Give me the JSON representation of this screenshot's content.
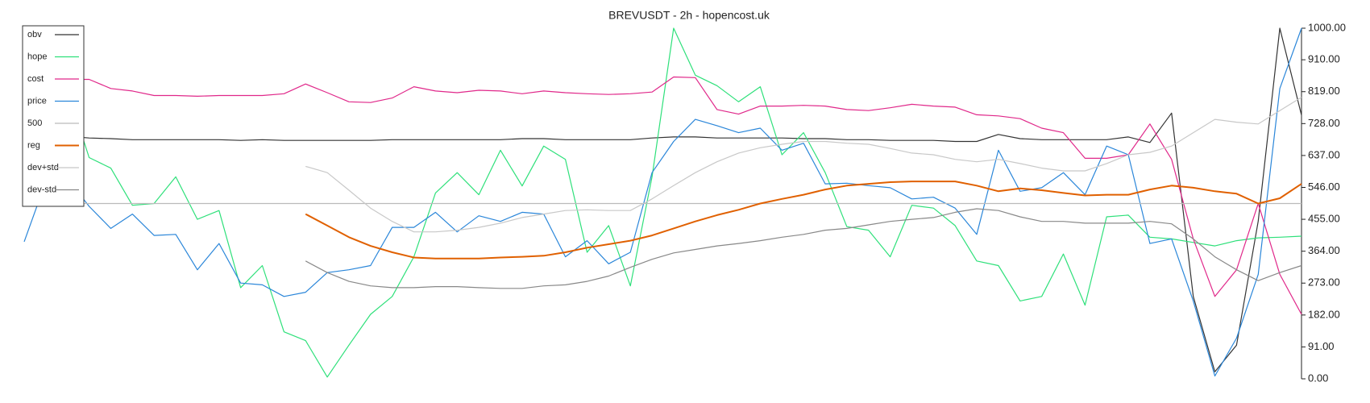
{
  "chart_data": {
    "type": "line",
    "title": "BREVUSDT - 2h - hopencost.uk",
    "legend": "upper left",
    "categories": [
      null,
      null,
      null,
      null,
      null,
      null,
      null,
      null,
      null,
      null,
      null,
      null,
      null,
      null,
      null,
      null,
      null,
      null,
      null,
      null,
      null,
      null,
      null,
      null,
      null,
      null,
      null,
      null,
      null,
      null,
      null,
      null,
      null,
      null,
      null,
      null,
      null,
      null,
      null,
      null,
      null,
      null,
      null,
      null,
      null,
      null,
      null,
      null,
      null,
      null,
      null,
      null,
      null,
      null,
      null,
      null,
      null,
      null,
      null,
      null
    ],
    "ylim": [
      0,
      1000
    ],
    "yticks": [
      {
        "value": 0,
        "label": "0.00"
      },
      {
        "value": 91,
        "label": "91.00"
      },
      {
        "value": 182,
        "label": "182.00"
      },
      {
        "value": 273,
        "label": "273.00"
      },
      {
        "value": 364,
        "label": "364.00"
      },
      {
        "value": 455,
        "label": "455.00"
      },
      {
        "value": 546,
        "label": "546.00"
      },
      {
        "value": 637,
        "label": "637.00"
      },
      {
        "value": 728,
        "label": "728.00"
      },
      {
        "value": 819,
        "label": "819.00"
      },
      {
        "value": 910,
        "label": "910.00"
      },
      {
        "value": 1000,
        "label": "1000.00"
      }
    ],
    "series": [
      {
        "name": "obv",
        "color": "#333333",
        "values": [
          697,
          692,
          692,
          687,
          685,
          682,
          682,
          682,
          682,
          682,
          680,
          682,
          680,
          680,
          680,
          680,
          680,
          682,
          682,
          682,
          682,
          682,
          682,
          685,
          685,
          682,
          682,
          682,
          682,
          687,
          690,
          690,
          687,
          687,
          687,
          687,
          685,
          685,
          682,
          682,
          680,
          680,
          680,
          677,
          677,
          697,
          685,
          682,
          682,
          682,
          682,
          690,
          674,
          758,
          235,
          20,
          96,
          450,
          1000,
          752
        ]
      },
      {
        "name": "hope",
        "color": "#2ee07a",
        "values": [
          828,
          790,
          823,
          631,
          601,
          495,
          500,
          576,
          455,
          480,
          260,
          323,
          134,
          109,
          5,
          96,
          184,
          235,
          348,
          530,
          588,
          525,
          652,
          550,
          664,
          626,
          361,
          437,
          265,
          576,
          1000,
          866,
          836,
          790,
          833,
          639,
          702,
          588,
          434,
          424,
          348,
          495,
          487,
          437,
          336,
          323,
          222,
          235,
          356,
          210,
          462,
          467,
          404,
          399,
          389,
          379,
          394,
          402,
          404,
          407
        ]
      },
      {
        "name": "cost",
        "color": "#e0288a",
        "values": [
          866,
          841,
          854,
          854,
          828,
          821,
          808,
          808,
          806,
          808,
          808,
          808,
          813,
          841,
          816,
          790,
          788,
          801,
          833,
          821,
          816,
          823,
          821,
          813,
          821,
          816,
          813,
          811,
          813,
          818,
          861,
          859,
          768,
          755,
          778,
          778,
          780,
          778,
          768,
          765,
          773,
          783,
          778,
          775,
          753,
          750,
          742,
          715,
          702,
          629,
          629,
          639,
          727,
          626,
          399,
          235,
          311,
          500,
          298,
          184
        ]
      },
      {
        "name": "price",
        "color": "#2a86d9",
        "values": [
          391,
          563,
          571,
          492,
          429,
          470,
          409,
          412,
          311,
          386,
          273,
          268,
          235,
          247,
          303,
          311,
          323,
          432,
          432,
          475,
          419,
          465,
          449,
          475,
          470,
          348,
          394,
          328,
          361,
          588,
          677,
          740,
          722,
          702,
          715,
          652,
          672,
          556,
          558,
          551,
          545,
          513,
          518,
          487,
          412,
          652,
          535,
          545,
          588,
          525,
          664,
          639,
          386,
          399,
          222,
          8,
          116,
          298,
          828,
          1000
        ]
      },
      {
        "name": "500",
        "color": "#bbbbbb",
        "values": [
          500,
          500,
          500,
          500,
          500,
          500,
          500,
          500,
          500,
          500,
          500,
          500,
          500,
          500,
          500,
          500,
          500,
          500,
          500,
          500,
          500,
          500,
          500,
          500,
          500,
          500,
          500,
          500,
          500,
          500,
          500,
          500,
          500,
          500,
          500,
          500,
          500,
          500,
          500,
          500,
          500,
          500,
          500,
          500,
          500,
          500,
          500,
          500,
          500,
          500,
          500,
          500,
          500,
          500,
          500,
          500,
          500,
          500,
          500,
          500
        ]
      },
      {
        "name": "reg",
        "color": "#e06000",
        "linewidth": 2,
        "values": [
          null,
          null,
          null,
          null,
          null,
          null,
          null,
          null,
          null,
          null,
          null,
          null,
          null,
          470,
          437,
          404,
          379,
          361,
          346,
          343,
          343,
          343,
          346,
          348,
          351,
          361,
          374,
          384,
          394,
          409,
          429,
          449,
          467,
          482,
          500,
          513,
          525,
          540,
          551,
          556,
          561,
          563,
          563,
          563,
          551,
          535,
          543,
          538,
          530,
          523,
          525,
          525,
          540,
          551,
          545,
          535,
          528,
          500,
          515,
          556
        ]
      },
      {
        "name": "dev+std",
        "color": "#c8c8c8",
        "values": [
          null,
          null,
          null,
          null,
          null,
          null,
          null,
          null,
          null,
          null,
          null,
          null,
          null,
          606,
          588,
          538,
          487,
          449,
          419,
          419,
          424,
          432,
          444,
          460,
          470,
          480,
          482,
          480,
          480,
          513,
          551,
          588,
          619,
          644,
          659,
          669,
          677,
          677,
          672,
          669,
          657,
          644,
          639,
          626,
          619,
          626,
          614,
          601,
          593,
          593,
          614,
          639,
          646,
          664,
          702,
          740,
          732,
          727,
          765,
          803
        ]
      },
      {
        "name": "dev-std",
        "color": "#888888",
        "values": [
          null,
          null,
          null,
          null,
          null,
          null,
          null,
          null,
          null,
          null,
          null,
          null,
          null,
          336,
          303,
          278,
          265,
          260,
          260,
          263,
          263,
          260,
          258,
          258,
          265,
          268,
          278,
          293,
          318,
          341,
          359,
          369,
          379,
          386,
          394,
          404,
          412,
          424,
          429,
          439,
          449,
          455,
          460,
          475,
          485,
          480,
          462,
          449,
          449,
          444,
          444,
          444,
          449,
          442,
          399,
          348,
          311,
          280,
          303,
          323
        ]
      }
    ]
  }
}
